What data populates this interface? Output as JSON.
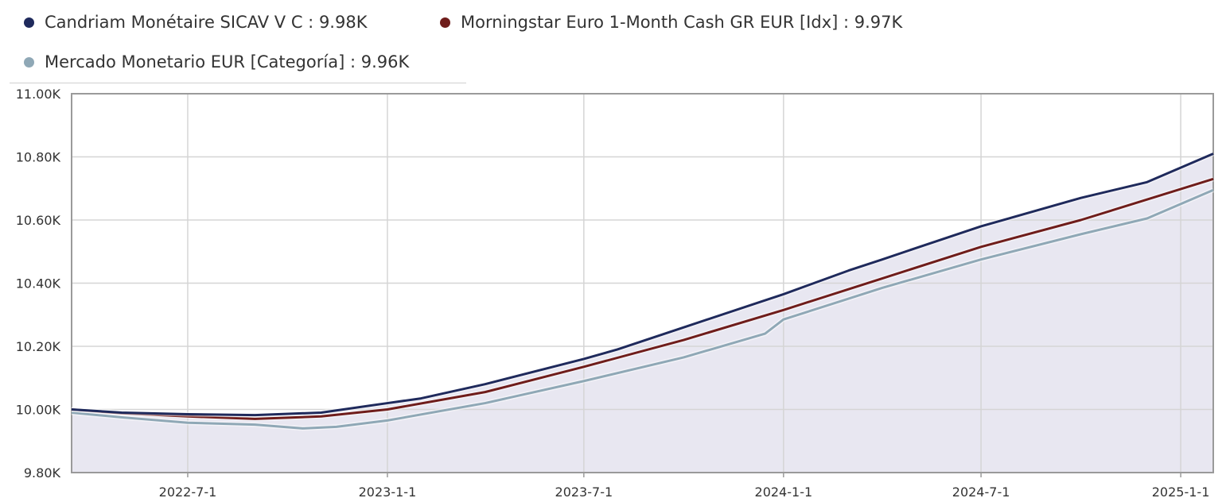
{
  "legend": [
    {
      "name": "Candriam Monétaire SICAV V C",
      "value_text": "9.98K",
      "color": "#1f2a5c"
    },
    {
      "name": "Morningstar Euro 1-Month Cash GR EUR [Idx]",
      "value_text": "9.97K",
      "color": "#6f1d1b"
    },
    {
      "name": "Mercado Monetario EUR [Categoría]",
      "value_text": "9.96K",
      "color": "#8fa8b6"
    }
  ],
  "colors": {
    "area_fill": "#e8e7f1",
    "grid": "#d5d5d5",
    "plot_border": "#9a9a9a"
  },
  "chart_data": {
    "type": "line",
    "ylim": [
      9800,
      11000
    ],
    "y_ticks": [
      {
        "value": 9800,
        "label": "9.80K"
      },
      {
        "value": 10000,
        "label": "10.00K"
      },
      {
        "value": 10200,
        "label": "10.20K"
      },
      {
        "value": 10400,
        "label": "10.40K"
      },
      {
        "value": 10600,
        "label": "10.60K"
      },
      {
        "value": 10800,
        "label": "10.80K"
      },
      {
        "value": 11000,
        "label": "11.00K"
      }
    ],
    "xlim": [
      "2022-03-16",
      "2025-01-31"
    ],
    "x_ticks": [
      {
        "date": "2022-07-01",
        "label": "2022-7-1"
      },
      {
        "date": "2023-01-01",
        "label": "2023-1-1"
      },
      {
        "date": "2023-07-01",
        "label": "2023-7-1"
      },
      {
        "date": "2024-01-01",
        "label": "2024-1-1"
      },
      {
        "date": "2024-07-01",
        "label": "2024-7-1"
      },
      {
        "date": "2025-01-01",
        "label": "2025-1-1"
      }
    ],
    "grid": true,
    "legend_position": "top-left",
    "series": [
      {
        "name": "Candriam Monétaire SICAV V C",
        "x": [
          "2022-03-16",
          "2022-05-01",
          "2022-07-01",
          "2022-09-01",
          "2022-11-01",
          "2023-01-01",
          "2023-02-01",
          "2023-04-01",
          "2023-07-01",
          "2023-08-01",
          "2023-10-01",
          "2024-01-01",
          "2024-03-01",
          "2024-04-01",
          "2024-05-01",
          "2024-07-01",
          "2024-10-01",
          "2024-12-01",
          "2025-01-31"
        ],
        "y": [
          10000,
          9990,
          9985,
          9982,
          9990,
          10020,
          10035,
          10080,
          10160,
          10190,
          10260,
          10365,
          10440,
          10475,
          10510,
          10580,
          10670,
          10720,
          10810
        ]
      },
      {
        "name": "Morningstar Euro 1-Month Cash GR EUR [Idx]",
        "x": [
          "2022-03-16",
          "2022-05-01",
          "2022-07-01",
          "2022-09-01",
          "2022-11-01",
          "2023-01-01",
          "2023-04-01",
          "2023-07-01",
          "2023-10-01",
          "2024-01-01",
          "2024-04-01",
          "2024-07-01",
          "2024-10-01",
          "2025-01-31"
        ],
        "y": [
          10000,
          9988,
          9978,
          9970,
          9978,
          10000,
          10055,
          10135,
          10220,
          10315,
          10415,
          10515,
          10600,
          10730
        ]
      },
      {
        "name": "Mercado Monetario EUR [Categoría]",
        "x": [
          "2022-03-16",
          "2022-05-01",
          "2022-07-01",
          "2022-09-01",
          "2022-10-15",
          "2022-11-15",
          "2023-01-01",
          "2023-04-01",
          "2023-07-01",
          "2023-10-01",
          "2023-12-15",
          "2024-01-01",
          "2024-04-01",
          "2024-07-01",
          "2024-10-01",
          "2024-12-01",
          "2025-01-31"
        ],
        "y": [
          9990,
          9975,
          9958,
          9952,
          9940,
          9945,
          9965,
          10020,
          10090,
          10165,
          10240,
          10285,
          10385,
          10475,
          10555,
          10605,
          10695
        ]
      }
    ]
  }
}
